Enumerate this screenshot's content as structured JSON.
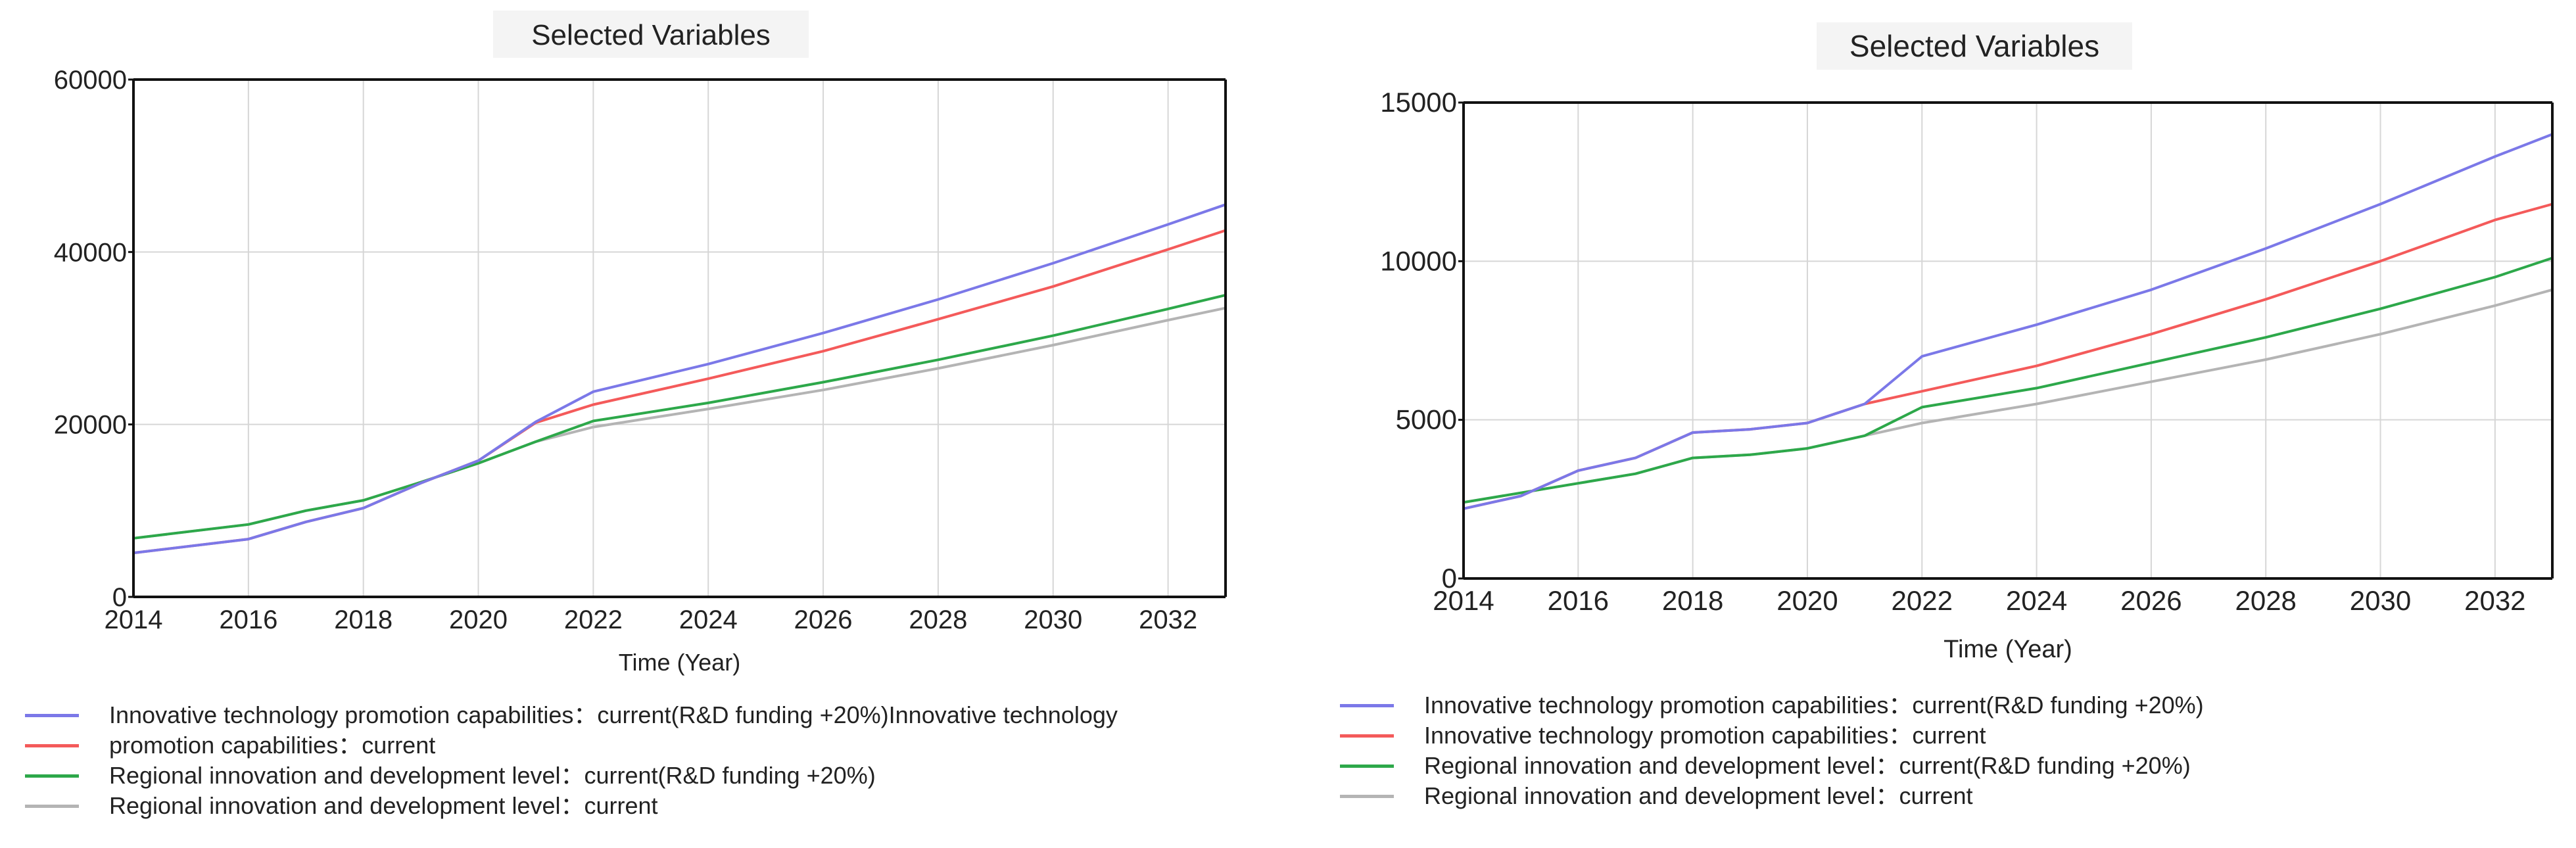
{
  "colors": {
    "innov_rd": "#7b78e8",
    "innov_current": "#f45a5a",
    "regional_rd": "#2da84a",
    "regional_current": "#b4b4b4"
  },
  "chart_data": [
    {
      "type": "line",
      "title": "Selected Variables",
      "xlabel": "Time (Year)",
      "ylabel": "",
      "xlim": [
        2014,
        2033
      ],
      "ylim": [
        0,
        60000
      ],
      "x_ticks": [
        2014,
        2016,
        2018,
        2020,
        2022,
        2024,
        2026,
        2028,
        2030,
        2032
      ],
      "y_ticks": [
        0,
        20000,
        40000,
        60000
      ],
      "grid": true,
      "legend_position": "bottom",
      "legend": [
        "Innovative technology promotion capabilities：current(R&D funding +20%)Innovative technology",
        "promotion capabilities：current",
        "Regional innovation and development level：current(R&D funding +20%)",
        "Regional innovation and development level：current"
      ],
      "x": [
        2014,
        2016,
        2017,
        2018,
        2019,
        2020,
        2021,
        2022,
        2024,
        2026,
        2028,
        2030,
        2032,
        2033
      ],
      "series": [
        {
          "name": "Innovative technology promotion capabilities：current(R&D funding +20%)",
          "color_key": "innov_rd",
          "values": [
            5100,
            6700,
            8700,
            10300,
            13200,
            15800,
            20300,
            23800,
            27000,
            30600,
            34500,
            38700,
            43200,
            45500
          ]
        },
        {
          "name": "Innovative technology promotion capabilities：current",
          "color_key": "innov_current",
          "values": [
            5100,
            6700,
            8700,
            10300,
            13200,
            15800,
            20200,
            22300,
            25300,
            28500,
            32200,
            36000,
            40300,
            42500
          ]
        },
        {
          "name": "Regional innovation and development level：current(R&D funding +20%)",
          "color_key": "regional_rd",
          "values": [
            6800,
            8400,
            10000,
            11200,
            13300,
            15500,
            18000,
            20400,
            22500,
            24900,
            27500,
            30300,
            33400,
            35000
          ]
        },
        {
          "name": "Regional innovation and development level：current",
          "color_key": "regional_current",
          "values": [
            6800,
            8400,
            10000,
            11200,
            13300,
            15500,
            18000,
            19700,
            21800,
            24000,
            26500,
            29200,
            32100,
            33500
          ]
        }
      ]
    },
    {
      "type": "line",
      "title": "Selected Variables",
      "xlabel": "Time (Year)",
      "ylabel": "",
      "xlim": [
        2014,
        2033
      ],
      "ylim": [
        0,
        15000
      ],
      "x_ticks": [
        2014,
        2016,
        2018,
        2020,
        2022,
        2024,
        2026,
        2028,
        2030,
        2032
      ],
      "y_ticks": [
        0,
        5000,
        10000,
        15000
      ],
      "grid": true,
      "legend_position": "bottom",
      "legend": [
        "Innovative technology promotion capabilities：current(R&D funding +20%)",
        "Innovative technology promotion capabilities：current",
        "Regional innovation and development level：current(R&D funding +20%)",
        "Regional innovation and development level：current"
      ],
      "x": [
        2014,
        2015,
        2016,
        2017,
        2018,
        2019,
        2020,
        2021,
        2022,
        2024,
        2026,
        2028,
        2030,
        2032,
        2033
      ],
      "series": [
        {
          "name": "Innovative technology promotion capabilities：current(R&D funding +20%)",
          "color_key": "innov_rd",
          "values": [
            2200,
            2600,
            3400,
            3800,
            4600,
            4700,
            4900,
            5500,
            7000,
            8000,
            9100,
            10400,
            11800,
            13300,
            14000
          ]
        },
        {
          "name": "Innovative technology promotion capabilities：current",
          "color_key": "innov_current",
          "values": [
            2200,
            2600,
            3400,
            3800,
            4600,
            4700,
            4900,
            5500,
            5900,
            6700,
            7700,
            8800,
            10000,
            11300,
            11800
          ]
        },
        {
          "name": "Regional innovation and development level：current(R&D funding +20%)",
          "color_key": "regional_rd",
          "values": [
            2400,
            2700,
            3000,
            3300,
            3800,
            3900,
            4100,
            4500,
            5400,
            6000,
            6800,
            7600,
            8500,
            9500,
            10100
          ]
        },
        {
          "name": "Regional innovation and development level：current",
          "color_key": "regional_current",
          "values": [
            2400,
            2700,
            3000,
            3300,
            3800,
            3900,
            4100,
            4500,
            4900,
            5500,
            6200,
            6900,
            7700,
            8600,
            9100
          ]
        }
      ]
    }
  ]
}
